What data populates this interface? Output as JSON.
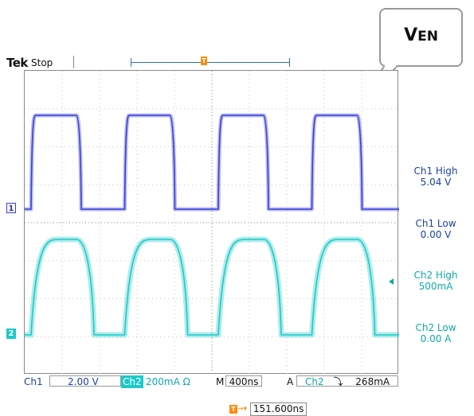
{
  "callout": {
    "label_main": "V",
    "label_sub": "EN"
  },
  "status": {
    "brand": "Tek",
    "state": "Stop"
  },
  "trigger": {
    "marker_label": "T",
    "position_readout": "151.600ns"
  },
  "channels": [
    {
      "id": "1",
      "color": "#3a3fd8"
    },
    {
      "id": "2",
      "color": "#1cc9c9"
    }
  ],
  "measurements": {
    "ch1_high_label": "Ch1 High",
    "ch1_high_value": "5.04 V",
    "ch1_low_label": "Ch1 Low",
    "ch1_low_value": "0.00 V",
    "ch2_high_label": "Ch2 High",
    "ch2_high_value": "500mA",
    "ch2_low_label": "Ch2 Low",
    "ch2_low_value": "0.00 A"
  },
  "settings": {
    "ch1_label": "Ch1",
    "ch1_scale": "2.00 V",
    "ch2_label": "Ch2",
    "ch2_scale": "200mA",
    "ch2_unit_symbol": "Ω",
    "m_label": "M",
    "timebase": "400ns",
    "a_label": "A",
    "trigger_source": "Ch2",
    "trigger_slope_symbol": "⤵",
    "trigger_level": "268mA"
  },
  "colors": {
    "ch1": "#3a3fd8",
    "ch2": "#1cc9c9",
    "trigger": "#ff8c00"
  }
}
